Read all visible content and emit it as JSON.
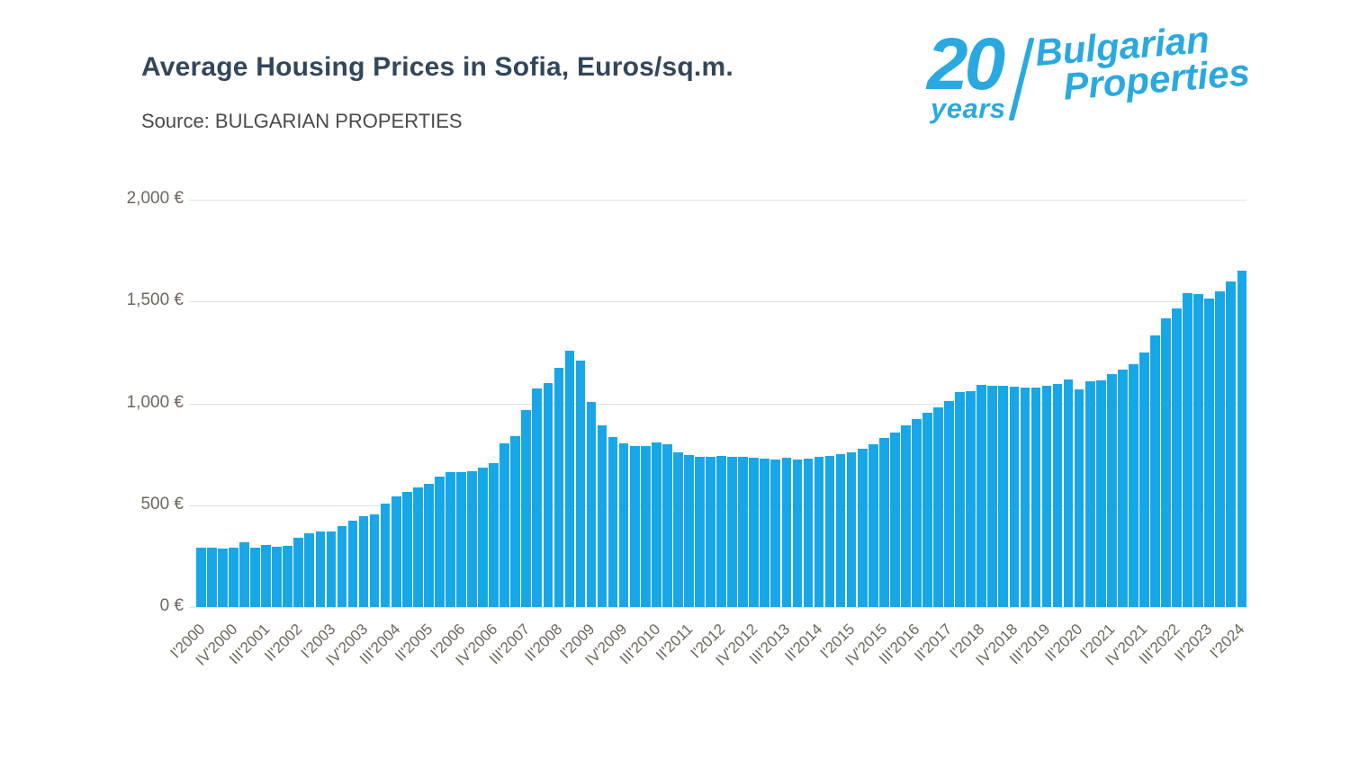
{
  "header": {
    "title": "Average Housing Prices in Sofia, Euros/sq.m.",
    "source": "Source: BULGARIAN PROPERTIES"
  },
  "logo": {
    "number": "20",
    "years": "years",
    "line1": "Bulgarian",
    "line2": "Properties",
    "color": "#29a9e0"
  },
  "colors": {
    "bar": "#17a7e8",
    "title": "#33475b",
    "axis_text": "#6e675d",
    "gridline": "#e4e2de",
    "background": "#ffffff"
  },
  "chart_data": {
    "type": "bar",
    "title": "Average Housing Prices in Sofia, Euros/sq.m.",
    "source": "Source: BULGARIAN PROPERTIES",
    "unit": "Euros/sq.m.",
    "grid": true,
    "legend": "none",
    "ylim": [
      0,
      2000
    ],
    "x_tick_step": 3,
    "bar_color": "#17a7e8",
    "y_ticks": [
      {
        "value": 2000,
        "label": "2,000 €"
      },
      {
        "value": 1500,
        "label": "1,500 €"
      },
      {
        "value": 1000,
        "label": "1,000 €"
      },
      {
        "value": 500,
        "label": "500 €"
      },
      {
        "value": 0,
        "label": "0 €"
      }
    ],
    "categories": [
      "I'2000",
      "II'2000",
      "III'2000",
      "IV'2000",
      "I'2001",
      "II'2001",
      "III'2001",
      "IV'2001",
      "I'2002",
      "II'2002",
      "III'2002",
      "IV'2002",
      "I'2003",
      "II'2003",
      "III'2003",
      "IV'2003",
      "I'2004",
      "II'2004",
      "III'2004",
      "IV'2004",
      "I'2005",
      "II'2005",
      "III'2005",
      "IV'2005",
      "I'2006",
      "II'2006",
      "III'2006",
      "IV'2006",
      "I'2007",
      "II'2007",
      "III'2007",
      "IV'2007",
      "I'2008",
      "II'2008",
      "III'2008",
      "IV'2008",
      "I'2009",
      "II'2009",
      "III'2009",
      "IV'2009",
      "I'2010",
      "II'2010",
      "III'2010",
      "IV'2010",
      "I'2011",
      "II'2011",
      "III'2011",
      "IV'2011",
      "I'2012",
      "II'2012",
      "III'2012",
      "IV'2012",
      "I'2013",
      "II'2013",
      "III'2013",
      "IV'2013",
      "I'2014",
      "II'2014",
      "III'2014",
      "IV'2014",
      "I'2015",
      "II'2015",
      "III'2015",
      "IV'2015",
      "I'2016",
      "II'2016",
      "III'2016",
      "IV'2016",
      "I'2017",
      "II'2017",
      "III'2017",
      "IV'2017",
      "I'2018",
      "II'2018",
      "III'2018",
      "IV'2018",
      "I'2019",
      "II'2019",
      "III'2019",
      "IV'2019",
      "I'2020",
      "II'2020",
      "III'2020",
      "IV'2020",
      "I'2021",
      "II'2021",
      "III'2021",
      "IV'2021",
      "I'2022",
      "II'2022",
      "III'2022",
      "IV'2022",
      "I'2023",
      "II'2023",
      "III'2023",
      "IV'2023",
      "I'2024"
    ],
    "values": [
      292,
      291,
      286,
      293,
      320,
      292,
      304,
      298,
      299,
      339,
      361,
      369,
      370,
      398,
      423,
      447,
      457,
      509,
      541,
      563,
      588,
      606,
      642,
      663,
      664,
      668,
      686,
      708,
      805,
      841,
      969,
      1074,
      1100,
      1175,
      1257,
      1208,
      1005,
      890,
      833,
      804,
      792,
      790,
      810,
      797,
      758,
      745,
      738,
      736,
      742,
      739,
      736,
      731,
      728,
      725,
      731,
      726,
      730,
      737,
      743,
      749,
      758,
      775,
      800,
      830,
      858,
      893,
      921,
      952,
      978,
      1010,
      1057,
      1058,
      1090,
      1087,
      1084,
      1080,
      1076,
      1078,
      1085,
      1093,
      1119,
      1069,
      1109,
      1113,
      1144,
      1165,
      1191,
      1249,
      1332,
      1419,
      1464,
      1541,
      1537,
      1516,
      1548,
      1597,
      1650
    ]
  }
}
